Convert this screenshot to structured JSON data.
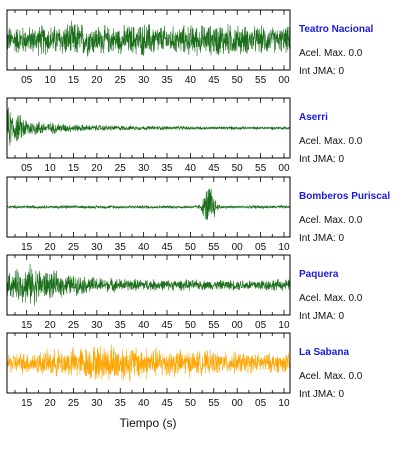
{
  "chart_data": {
    "type": "line",
    "xlabel": "Tiempo (s)",
    "panels": [
      {
        "station": "Teatro Nacional",
        "acel_label": "Acel. Max. 0.0",
        "int_label": "Int JMA: 0",
        "color": "#1a6e1a",
        "x_ticks": [
          "05",
          "10",
          "15",
          "20",
          "25",
          "30",
          "35",
          "40",
          "45",
          "50",
          "55",
          "00"
        ],
        "envelope": [
          0.55,
          0.6,
          0.55,
          0.65,
          0.6,
          0.7,
          0.75,
          0.65,
          0.6,
          0.55,
          0.6,
          0.65,
          0.7,
          0.6,
          0.55,
          0.6,
          0.65,
          0.6,
          0.7,
          0.65,
          0.6,
          0.55,
          0.6,
          0.5,
          0.55
        ]
      },
      {
        "station": "Aserri",
        "acel_label": "Acel. Max. 0.0",
        "int_label": "Int JMA: 0",
        "color": "#1a6e1a",
        "x_ticks": [
          "05",
          "10",
          "15",
          "20",
          "25",
          "30",
          "35",
          "40",
          "45",
          "50",
          "55",
          "00"
        ],
        "envelope": [
          0.9,
          0.55,
          0.35,
          0.28,
          0.22,
          0.18,
          0.15,
          0.13,
          0.12,
          0.11,
          0.1,
          0.09,
          0.09,
          0.08,
          0.08,
          0.08,
          0.07,
          0.07,
          0.07,
          0.07,
          0.06,
          0.06,
          0.06,
          0.06,
          0.06
        ]
      },
      {
        "station": "Bomberos Puriscal",
        "acel_label": "Acel. Max. 0.0",
        "int_label": "Int JMA: 0",
        "color": "#1a6e1a",
        "x_ticks": [
          "15",
          "20",
          "25",
          "30",
          "35",
          "40",
          "45",
          "50",
          "55",
          "00",
          "05",
          "10"
        ],
        "envelope": [
          0.06,
          0.06,
          0.07,
          0.06,
          0.06,
          0.07,
          0.06,
          0.06,
          0.06,
          0.07,
          0.06,
          0.06,
          0.07,
          0.06,
          0.06,
          0.06,
          0.07,
          0.06,
          0.06,
          0.06,
          0.06,
          0.06,
          0.06,
          0.06,
          0.06
        ],
        "spike": {
          "at": 0.715,
          "amp": 0.95,
          "width": 0.02
        }
      },
      {
        "station": "Paquera",
        "acel_label": "Acel. Max. 0.0",
        "int_label": "Int JMA: 0",
        "color": "#1a6e1a",
        "x_ticks": [
          "15",
          "20",
          "25",
          "30",
          "35",
          "40",
          "45",
          "50",
          "55",
          "00",
          "05",
          "10"
        ],
        "envelope": [
          0.5,
          0.65,
          0.85,
          0.65,
          0.55,
          0.45,
          0.4,
          0.35,
          0.3,
          0.28,
          0.26,
          0.25,
          0.24,
          0.23,
          0.22,
          0.22,
          0.21,
          0.2,
          0.2,
          0.21,
          0.22,
          0.24,
          0.25,
          0.24,
          0.22
        ]
      },
      {
        "station": "La Sabana",
        "acel_label": "Acel. Max. 0.0",
        "int_label": "Int JMA: 0",
        "color": "#ffa500",
        "x_ticks": [
          "15",
          "20",
          "25",
          "30",
          "35",
          "40",
          "45",
          "50",
          "55",
          "00",
          "05",
          "10"
        ],
        "envelope": [
          0.4,
          0.45,
          0.45,
          0.5,
          0.55,
          0.6,
          0.65,
          0.7,
          0.75,
          0.8,
          0.75,
          0.7,
          0.65,
          0.6,
          0.6,
          0.55,
          0.5,
          0.5,
          0.45,
          0.45,
          0.45,
          0.4,
          0.4,
          0.4,
          0.4
        ]
      }
    ]
  }
}
